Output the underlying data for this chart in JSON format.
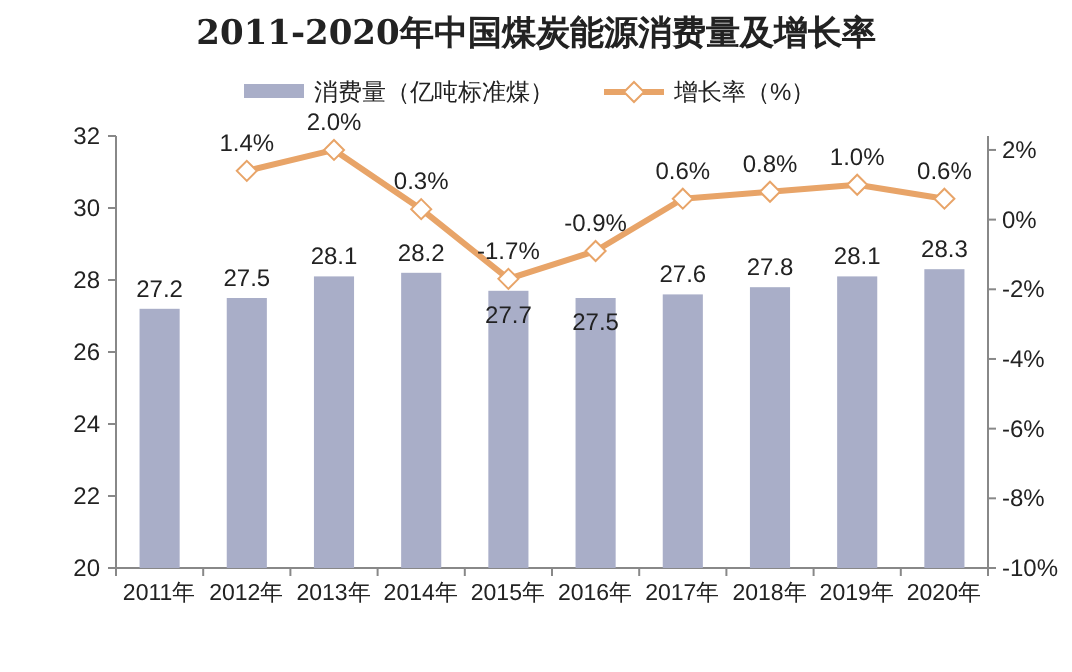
{
  "chart_data": {
    "type": "bar",
    "title": "2011-2020年中国煤炭能源消费量及增长率",
    "categories": [
      "2011年",
      "2012年",
      "2013年",
      "2014年",
      "2015年",
      "2016年",
      "2017年",
      "2018年",
      "2019年",
      "2020年"
    ],
    "series": [
      {
        "name": "消费量（亿吨标准煤）",
        "color": "#a9aec8",
        "values": [
          27.2,
          27.5,
          28.1,
          28.2,
          27.7,
          27.5,
          27.6,
          27.8,
          28.1,
          28.3
        ],
        "value_labels": [
          "27.2",
          "27.5",
          "28.1",
          "28.2",
          "27.7",
          "27.5",
          "27.6",
          "27.8",
          "28.1",
          "28.3"
        ]
      },
      {
        "name": "增长率（%）",
        "type": "line",
        "axis": "y2",
        "color": "#e8a468",
        "marker": "diamond",
        "values": [
          null,
          1.4,
          2.0,
          0.3,
          -1.7,
          -0.9,
          0.6,
          0.8,
          1.0,
          0.6
        ],
        "value_labels": [
          null,
          "1.4%",
          "2.0%",
          "0.3%",
          "-1.7%",
          "-0.9%",
          "0.6%",
          "0.8%",
          "1.0%",
          "0.6%"
        ]
      }
    ],
    "ylim": [
      20,
      32
    ],
    "yticks": [
      20,
      22,
      24,
      26,
      28,
      30,
      32
    ],
    "y2lim": [
      -10,
      2.4
    ],
    "y2ticks": [
      {
        "value": -10,
        "label": "-10%"
      },
      {
        "value": -8,
        "label": "-8%"
      },
      {
        "value": -6,
        "label": "-6%"
      },
      {
        "value": -4,
        "label": "-4%"
      },
      {
        "value": -2,
        "label": "-2%"
      },
      {
        "value": 0,
        "label": "0%"
      },
      {
        "value": 2,
        "label": "2%"
      }
    ],
    "legend": "top",
    "grid": false
  }
}
